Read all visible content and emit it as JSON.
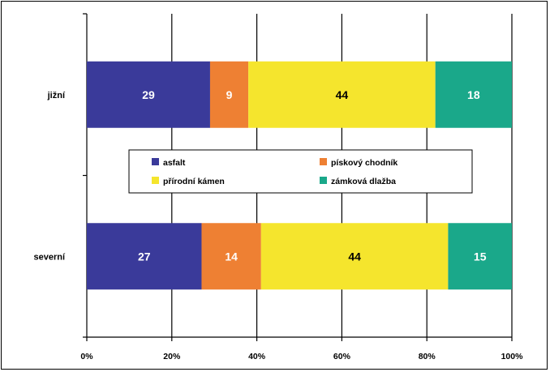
{
  "chart_data": {
    "type": "bar",
    "orientation": "horizontal",
    "stacked": "percent",
    "categories": [
      "jižní",
      "severní"
    ],
    "series": [
      {
        "name": "asfalt",
        "values": [
          29,
          27
        ],
        "color": "#3a3a9a"
      },
      {
        "name": "pískový chodník",
        "values": [
          9,
          14
        ],
        "color": "#ee8033"
      },
      {
        "name": "přírodní kámen",
        "values": [
          44,
          44
        ],
        "color": "#f5e52d"
      },
      {
        "name": "zámková dlažba",
        "values": [
          18,
          15
        ],
        "color": "#1aa88a"
      }
    ],
    "x_ticks": [
      "0%",
      "20%",
      "40%",
      "60%",
      "80%",
      "100%"
    ],
    "xlim": [
      0,
      100
    ],
    "grid": true,
    "legend_position": "center",
    "title": "",
    "xlabel": "",
    "ylabel": ""
  }
}
